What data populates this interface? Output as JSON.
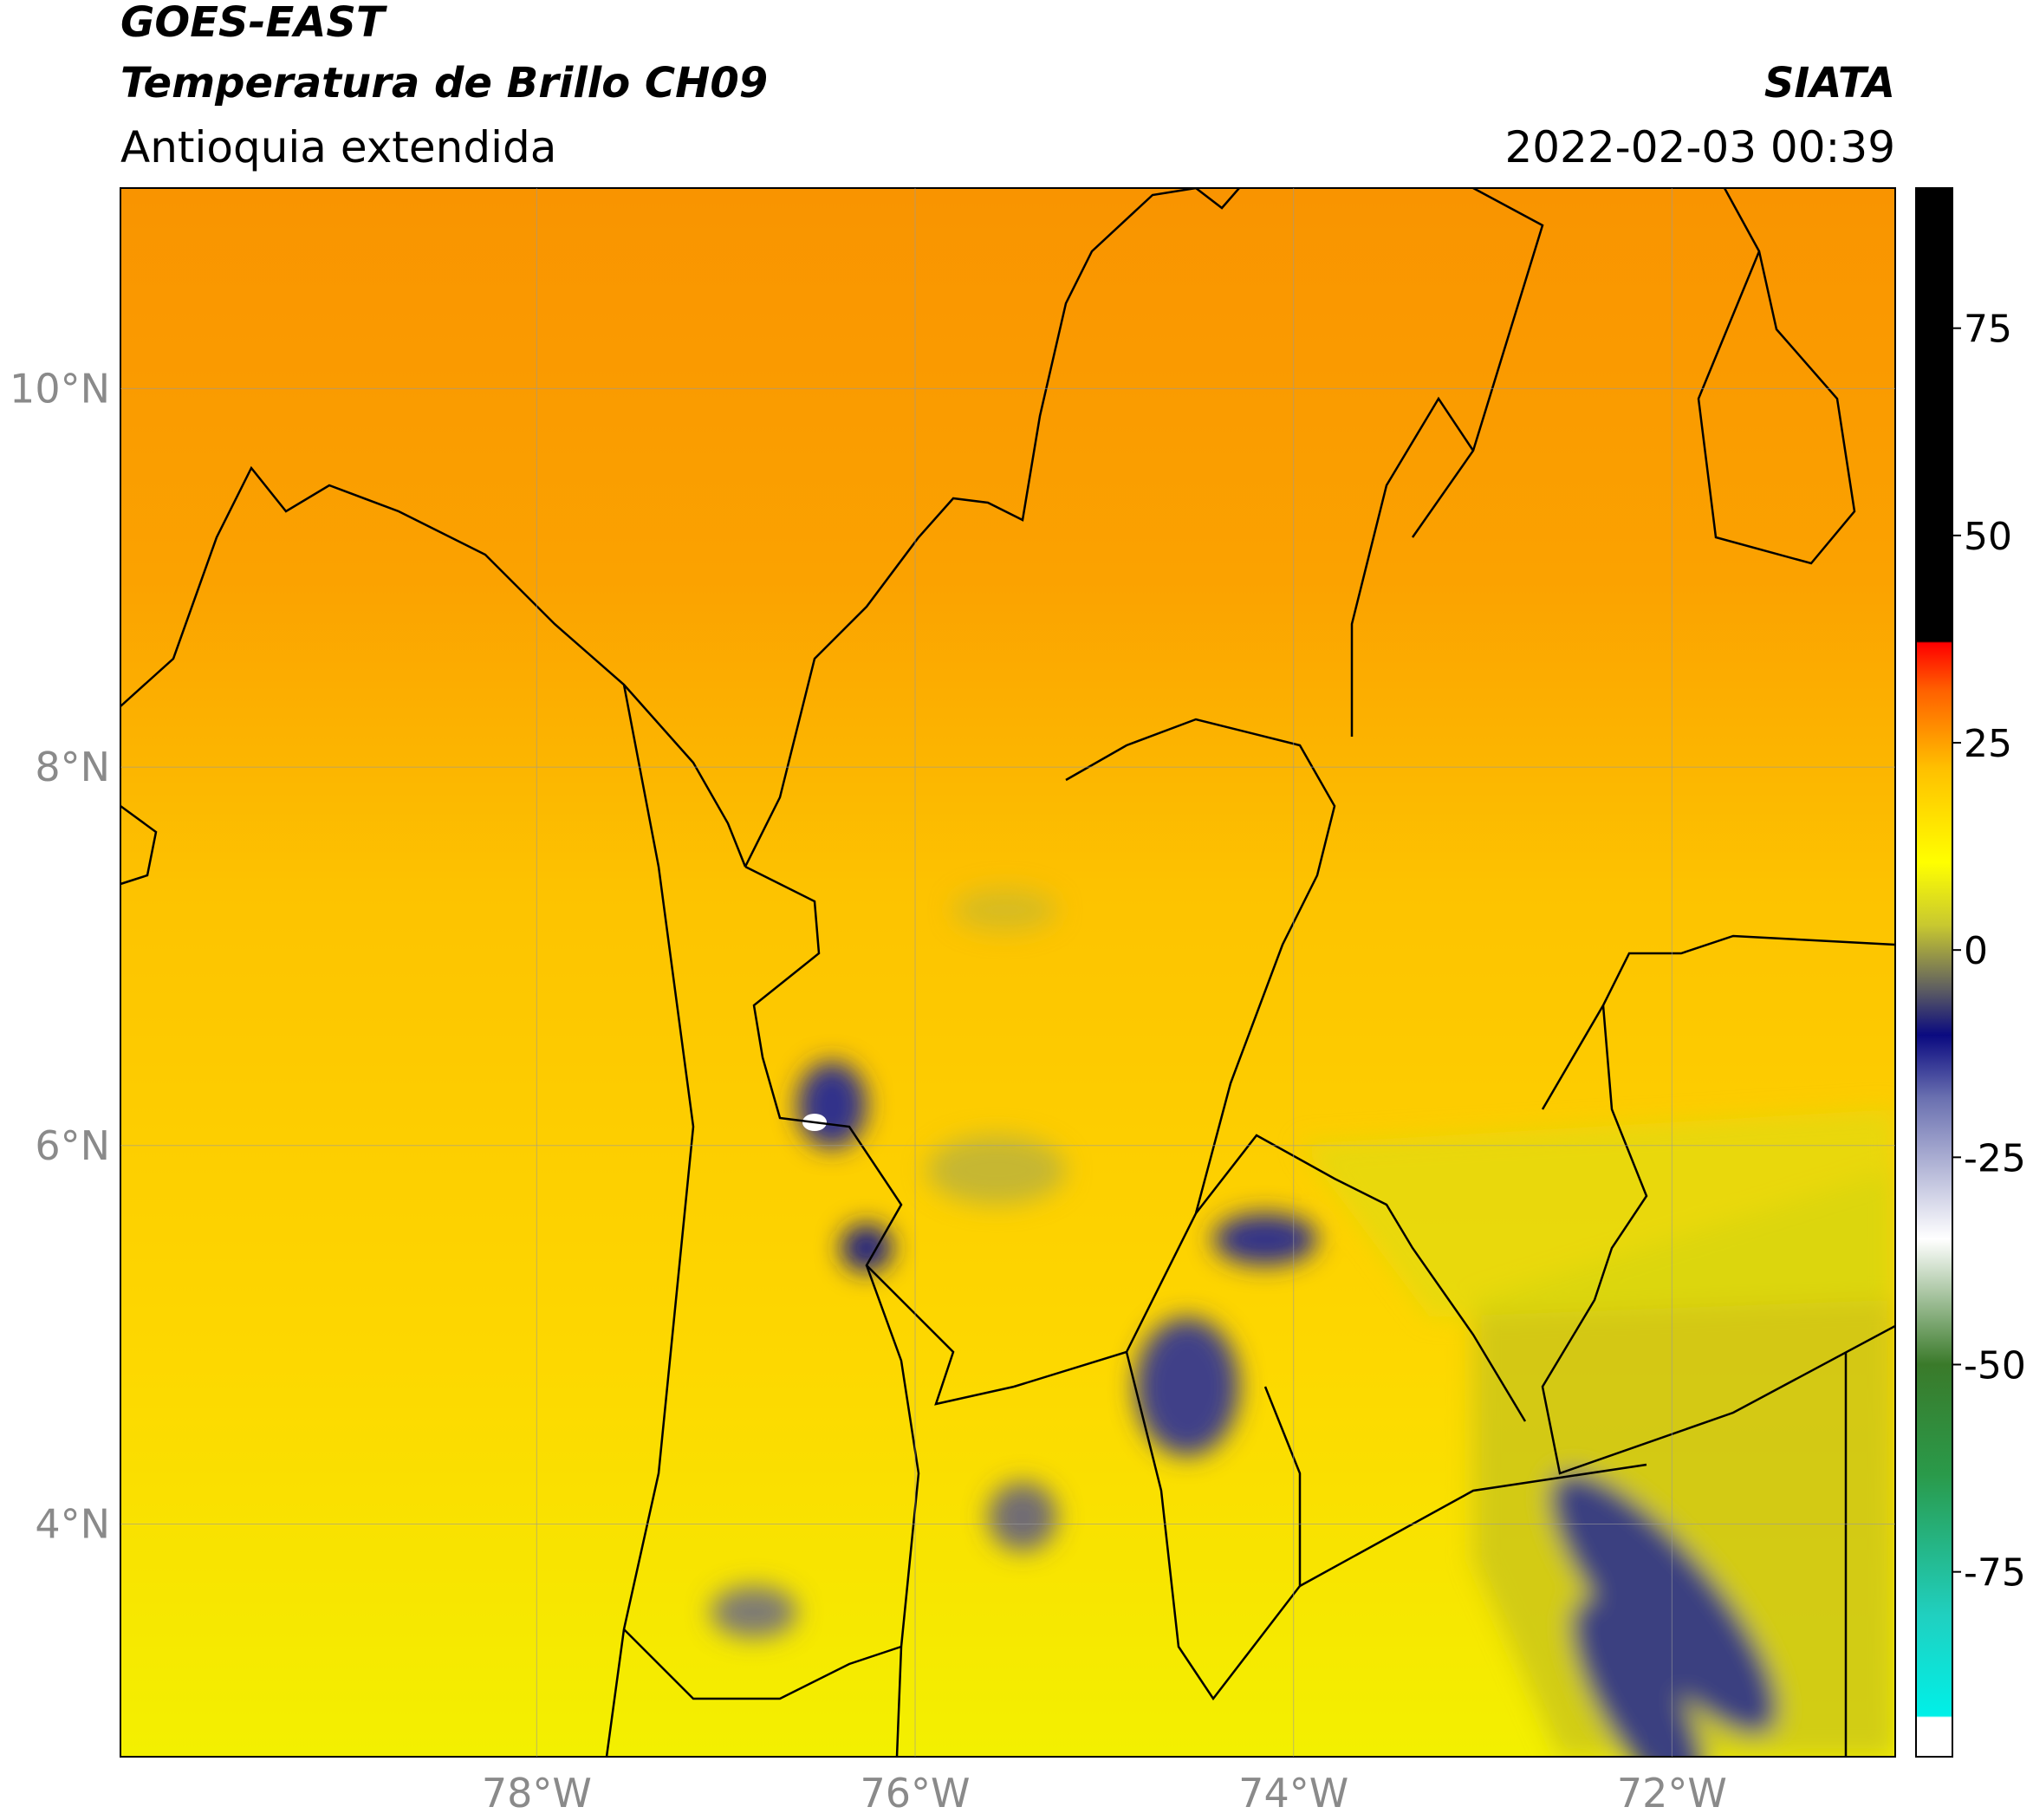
{
  "header": {
    "title": "GOES-EAST",
    "subtitle": "Temperatura de Brillo CH09",
    "region": "Antioquia extendida",
    "source": "SIATA",
    "datetime": "2022-02-03 00:39"
  },
  "map": {
    "xlim": [
      -80.2,
      -70.82
    ],
    "ylim": [
      2.77,
      11.06
    ],
    "xticks": [
      {
        "value": -78,
        "label": "78°W"
      },
      {
        "value": -76,
        "label": "76°W"
      },
      {
        "value": -74,
        "label": "74°W"
      },
      {
        "value": -72,
        "label": "72°W"
      }
    ],
    "yticks": [
      {
        "value": 10,
        "label": "10°N"
      },
      {
        "value": 8,
        "label": "8°N"
      },
      {
        "value": 6,
        "label": "6°N"
      },
      {
        "value": 4,
        "label": "4°N"
      }
    ],
    "grid": true
  },
  "colorbar": {
    "lim": [
      -97.3,
      91.9
    ],
    "ticks": [
      75,
      50,
      25,
      0,
      -25,
      -50,
      -75
    ]
  }
}
